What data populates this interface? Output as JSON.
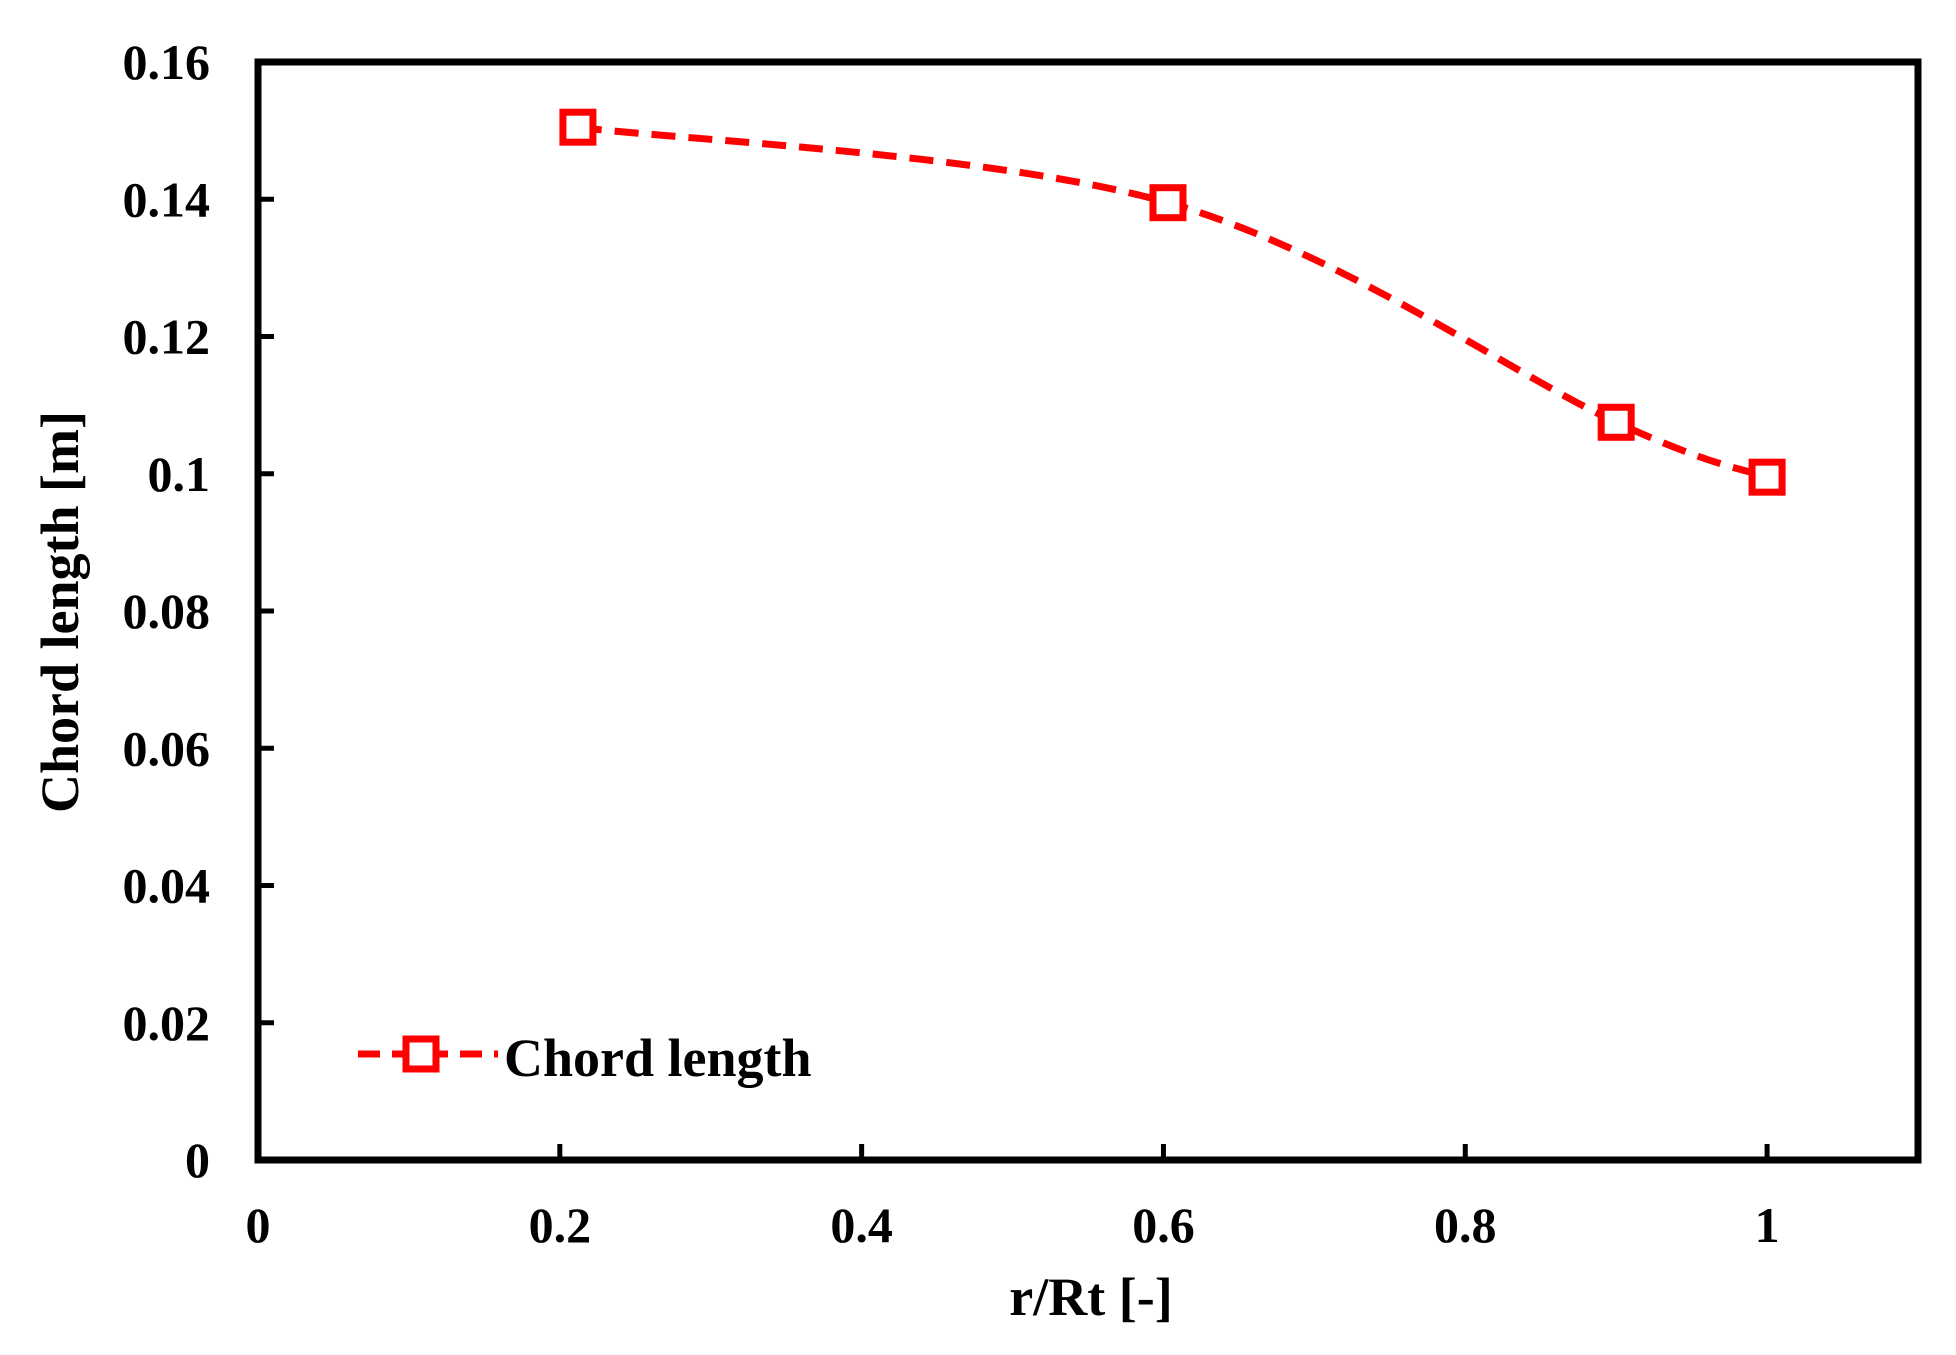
{
  "chart_data": {
    "type": "line",
    "title": "",
    "xlabel": "r/Rt [-]",
    "ylabel": "Chord length [m]",
    "xlim": [
      0,
      1.1
    ],
    "ylim": [
      0,
      0.16
    ],
    "xticks": [
      0,
      0.2,
      0.4,
      0.6,
      0.8,
      1
    ],
    "xtick_labels": [
      "0",
      "0.2",
      "0.4",
      "0.6",
      "0.8",
      "1"
    ],
    "yticks": [
      0,
      0.02,
      0.04,
      0.06,
      0.08,
      0.1,
      0.12,
      0.14,
      0.16
    ],
    "ytick_labels": [
      "0",
      "0.02",
      "0.04",
      "0.06",
      "0.08",
      "0.1",
      "0.12",
      "0.14",
      "0.16"
    ],
    "grid": false,
    "legend_position": "bottom-left",
    "series": [
      {
        "name": "Chord length",
        "color": "#ff0000",
        "line_style": "dashed",
        "marker": "hollow-square",
        "smooth": true,
        "x": [
          0.212,
          0.603,
          0.9,
          1.0
        ],
        "y": [
          0.1505,
          0.1395,
          0.1075,
          0.0995
        ]
      }
    ]
  }
}
